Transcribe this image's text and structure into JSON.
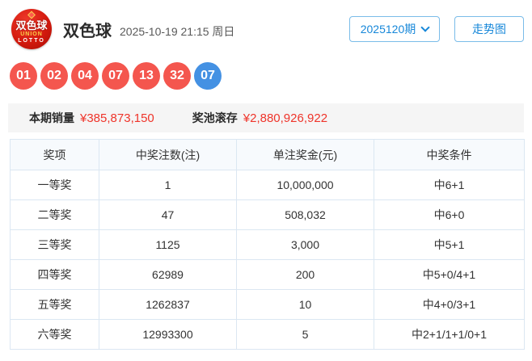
{
  "header": {
    "logo_line1": "双色球",
    "logo_line2": "UNION",
    "logo_line3": "LOTTO",
    "title": "双色球",
    "datetime": "2025-10-19 21:15 周日",
    "issue_select_label": "2025120期",
    "trend_button_label": "走势图"
  },
  "balls": {
    "red": [
      "01",
      "02",
      "04",
      "07",
      "13",
      "32"
    ],
    "blue": [
      "07"
    ]
  },
  "stats": {
    "sales_label": "本期销量",
    "sales_value": "¥385,873,150",
    "pool_label": "奖池滚存",
    "pool_value": "¥2,880,926,922"
  },
  "prize_table": {
    "headers": [
      "奖项",
      "中奖注数(注)",
      "单注奖金(元)",
      "中奖条件"
    ],
    "rows": [
      [
        "一等奖",
        "1",
        "10,000,000",
        "中6+1"
      ],
      [
        "二等奖",
        "47",
        "508,032",
        "中6+0"
      ],
      [
        "三等奖",
        "1125",
        "3,000",
        "中5+1"
      ],
      [
        "四等奖",
        "62989",
        "200",
        "中5+0/4+1"
      ],
      [
        "五等奖",
        "1262837",
        "10",
        "中4+0/3+1"
      ],
      [
        "六等奖",
        "12993300",
        "5",
        "中2+1/1+1/0+1"
      ]
    ]
  },
  "colors": {
    "red_ball": "#f4564e",
    "blue_ball": "#4491e3",
    "accent_blue": "#1687d9",
    "amount_red": "#ef342a",
    "table_border": "#dbe7f2",
    "stats_bg": "#f5f5f5"
  }
}
